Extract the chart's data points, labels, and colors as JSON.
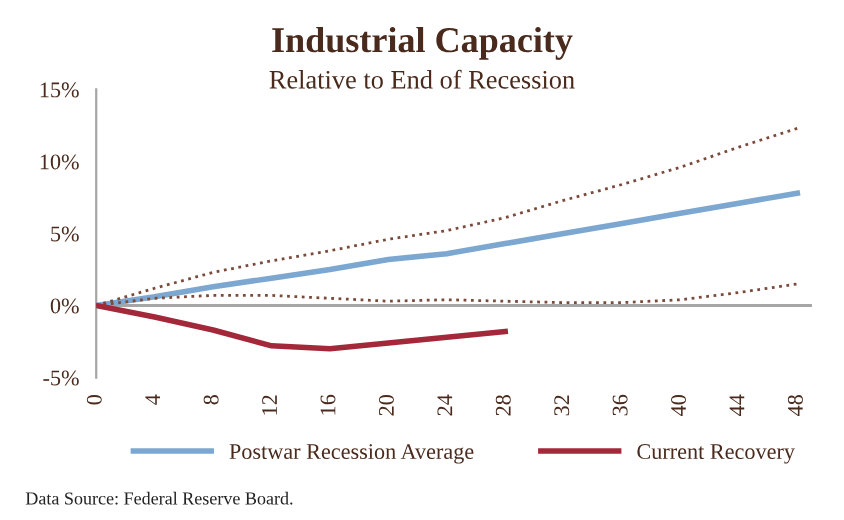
{
  "chart_data": {
    "type": "line",
    "title": "Industrial Capacity",
    "subtitle": "Relative to End of Recession",
    "x": [
      0,
      4,
      8,
      12,
      16,
      20,
      24,
      28,
      32,
      36,
      40,
      44,
      48
    ],
    "series": [
      {
        "name": "Postwar Recession Average",
        "color": "#7ba7d1",
        "values": [
          0,
          0.6,
          1.3,
          1.9,
          2.5,
          3.2,
          3.6,
          4.3,
          5.0,
          5.7,
          6.4,
          7.1,
          7.8
        ]
      },
      {
        "color": "#7b4a3a",
        "line_style": "dotted",
        "values": [
          0,
          1.2,
          2.3,
          3.1,
          3.8,
          4.6,
          5.2,
          6.1,
          7.3,
          8.4,
          9.6,
          11.0,
          12.3
        ]
      },
      {
        "color": "#7b4a3a",
        "line_style": "dotted",
        "values": [
          0,
          0.5,
          0.7,
          0.7,
          0.5,
          0.3,
          0.4,
          0.3,
          0.2,
          0.2,
          0.4,
          0.9,
          1.5
        ]
      },
      {
        "name": "Current Recovery",
        "color": "#a3283a",
        "x": [
          0,
          4,
          8,
          12,
          16,
          20,
          24,
          28
        ],
        "values": [
          0,
          -0.8,
          -1.7,
          -2.8,
          -3.0,
          -2.6,
          -2.2,
          -1.8
        ]
      }
    ],
    "xlim": [
      0,
      49
    ],
    "xticks": [
      0,
      4,
      8,
      12,
      16,
      20,
      24,
      28,
      32,
      36,
      40,
      44,
      48
    ],
    "ylim": [
      -5,
      15
    ],
    "yticks": [
      {
        "value": -5,
        "label": "-5%"
      },
      {
        "value": 0,
        "label": "0%"
      },
      {
        "value": 5,
        "label": "5%"
      },
      {
        "value": 10,
        "label": "10%"
      },
      {
        "value": 15,
        "label": "15%"
      }
    ],
    "ref_lines": [
      {
        "axis": "y",
        "value": 0,
        "color": "#a6a6a6"
      }
    ],
    "legend": "bottom",
    "grid": false,
    "line_style": "solid",
    "marker": "none",
    "annotations": [
      "Data Source: Federal Reserve Board."
    ]
  }
}
